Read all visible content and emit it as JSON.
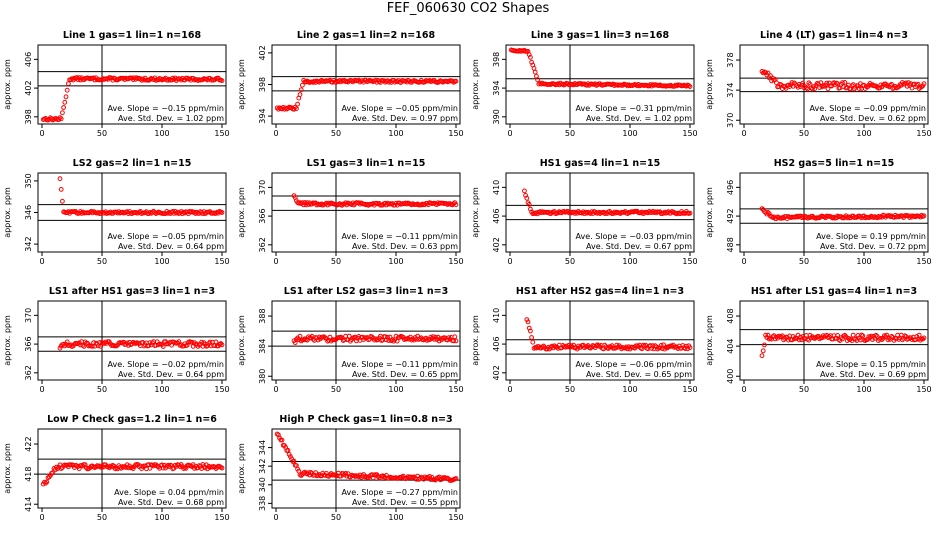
{
  "title": "FEF_060630  CO2 Shapes",
  "y_axis_label": "approx. ppm",
  "slope_prefix": "Ave. Slope = ",
  "slope_unit": " ppm/min",
  "sd_prefix": "Ave. Std. Dev. = ",
  "sd_unit": " ppm",
  "colors": {
    "points": "#ff0000",
    "lines": "#000000"
  },
  "chart_data": [
    {
      "type": "scatter",
      "title": "Line 1 gas=1 lin=1 n=168",
      "ylabel": "approx. ppm",
      "xlim": [
        0,
        150
      ],
      "xticks": [
        "0",
        "50",
        "100",
        "150"
      ],
      "ylim": [
        397,
        408
      ],
      "yticks": [
        398,
        402,
        406
      ],
      "ytick_labels": [
        "398",
        "402",
        "406"
      ],
      "hlines": [
        402.3,
        404.3
      ],
      "vline": 50,
      "slope": "−0.15",
      "sd": "1.02",
      "shape": {
        "start": 1,
        "end": 150,
        "pre": 397.7,
        "plateau": 403.3,
        "rise_start": 16,
        "rise_end": 23,
        "noise": 0.18,
        "drift": -0.1
      }
    },
    {
      "type": "scatter",
      "title": "Line 2 gas=1 lin=2 n=168",
      "ylabel": "approx. ppm",
      "xlim": [
        0,
        150
      ],
      "xticks": [
        "0",
        "50",
        "100",
        "150"
      ],
      "ylim": [
        393,
        403
      ],
      "yticks": [
        394,
        398,
        402
      ],
      "ytick_labels": [
        "394",
        "398",
        "402"
      ],
      "hlines": [
        397.2,
        399.0
      ],
      "vline": 50,
      "slope": "−0.05",
      "sd": "0.97",
      "shape": {
        "start": 1,
        "end": 150,
        "pre": 395.0,
        "plateau": 398.4,
        "rise_start": 17,
        "rise_end": 23,
        "noise": 0.15,
        "drift": 0
      }
    },
    {
      "type": "scatter",
      "title": "Line 3 gas=1 lin=3 n=168",
      "ylabel": "approx. ppm",
      "xlim": [
        0,
        150
      ],
      "xticks": [
        "0",
        "50",
        "100",
        "150"
      ],
      "ylim": [
        389,
        400
      ],
      "yticks": [
        390,
        394,
        398
      ],
      "ytick_labels": [
        "390",
        "394",
        "398"
      ],
      "hlines": [
        393.6,
        395.3
      ],
      "vline": 50,
      "slope": "−0.31",
      "sd": "1.02",
      "shape": {
        "start": 1,
        "end": 150,
        "pre": 399.2,
        "plateau": 394.6,
        "rise_start": 15,
        "rise_end": 24,
        "noise": 0.12,
        "drift": -0.3
      }
    },
    {
      "type": "scatter",
      "title": "Line 4 (LT) gas=1 lin=4 n=3",
      "ylabel": "approx. ppm",
      "xlim": [
        0,
        150
      ],
      "xticks": [
        "0",
        "50",
        "100",
        "150"
      ],
      "ylim": [
        369.5,
        380
      ],
      "yticks": [
        370,
        374,
        378
      ],
      "ytick_labels": [
        "370",
        "374",
        "378"
      ],
      "hlines": [
        373.8,
        375.6
      ],
      "vline": 50,
      "slope": "−0.09",
      "sd": "0.62",
      "shape": {
        "start": 15,
        "end": 150,
        "pre": 376.6,
        "plateau": 374.6,
        "rise_start": 15,
        "rise_end": 30,
        "noise": 0.45,
        "drift": 0
      }
    },
    {
      "type": "scatter",
      "title": "LS2 gas=2 lin=1 n=15",
      "ylabel": "approx. ppm",
      "xlim": [
        0,
        150
      ],
      "xticks": [
        "0",
        "50",
        "100",
        "150"
      ],
      "ylim": [
        341,
        351
      ],
      "yticks": [
        342,
        346,
        350
      ],
      "ytick_labels": [
        "342",
        "346",
        "350"
      ],
      "hlines": [
        345.0,
        347.0
      ],
      "vline": 50,
      "slope": "−0.05",
      "sd": "0.64",
      "shape": {
        "start": 15,
        "end": 150,
        "pre": 350.2,
        "plateau": 346.0,
        "rise_start": 15,
        "rise_end": 18,
        "noise": 0.15,
        "drift": 0
      }
    },
    {
      "type": "scatter",
      "title": "LS1 gas=3 lin=1 n=15",
      "ylabel": "approx. ppm",
      "xlim": [
        0,
        150
      ],
      "xticks": [
        "0",
        "50",
        "100",
        "150"
      ],
      "ylim": [
        361,
        372
      ],
      "yticks": [
        362,
        366,
        370
      ],
      "ytick_labels": [
        "362",
        "366",
        "370"
      ],
      "hlines": [
        366.8,
        368.8
      ],
      "vline": 50,
      "slope": "−0.11",
      "sd": "0.63",
      "shape": {
        "start": 15,
        "end": 150,
        "pre": 369.0,
        "plateau": 367.7,
        "rise_start": 15,
        "rise_end": 18,
        "noise": 0.2,
        "drift": 0
      }
    },
    {
      "type": "scatter",
      "title": "HS1 gas=4 lin=1 n=15",
      "ylabel": "approx. ppm",
      "xlim": [
        0,
        150
      ],
      "xticks": [
        "0",
        "50",
        "100",
        "150"
      ],
      "ylim": [
        401,
        412
      ],
      "yticks": [
        402,
        406,
        410
      ],
      "ytick_labels": [
        "402",
        "406",
        "410"
      ],
      "hlines": [
        405.5,
        407.5
      ],
      "vline": 50,
      "slope": "−0.03",
      "sd": "0.67",
      "shape": {
        "start": 12,
        "end": 150,
        "pre": 409.5,
        "plateau": 406.5,
        "rise_start": 12,
        "rise_end": 18,
        "noise": 0.18,
        "drift": 0
      }
    },
    {
      "type": "scatter",
      "title": "HS2 gas=5 lin=1 n=15",
      "ylabel": "approx. ppm",
      "xlim": [
        0,
        150
      ],
      "xticks": [
        "0",
        "50",
        "100",
        "150"
      ],
      "ylim": [
        487,
        498
      ],
      "yticks": [
        488,
        492,
        496
      ],
      "ytick_labels": [
        "488",
        "492",
        "496"
      ],
      "hlines": [
        491.0,
        493.0
      ],
      "vline": 50,
      "slope": "0.19",
      "sd": "0.72",
      "shape": {
        "start": 15,
        "end": 150,
        "pre": 492.9,
        "plateau": 491.8,
        "rise_start": 15,
        "rise_end": 25,
        "noise": 0.18,
        "drift": 0.2
      }
    },
    {
      "type": "scatter",
      "title": "LS1 after HS1 gas=3 lin=1 n=3",
      "ylabel": "approx. ppm",
      "xlim": [
        0,
        150
      ],
      "xticks": [
        "0",
        "50",
        "100",
        "150"
      ],
      "ylim": [
        361,
        372
      ],
      "yticks": [
        362,
        366,
        370
      ],
      "ytick_labels": [
        "362",
        "366",
        "370"
      ],
      "hlines": [
        365.0,
        367.0
      ],
      "vline": 50,
      "slope": "−0.02",
      "sd": "0.64",
      "shape": {
        "start": 15,
        "end": 150,
        "pre": 365.6,
        "plateau": 366.0,
        "rise_start": 15,
        "rise_end": 17,
        "noise": 0.35,
        "drift": 0
      }
    },
    {
      "type": "scatter",
      "title": "LS1 after LS2 gas=3 lin=1 n=3",
      "ylabel": "approx. ppm",
      "xlim": [
        0,
        150
      ],
      "xticks": [
        "0",
        "50",
        "100",
        "150"
      ],
      "ylim": [
        379.5,
        390
      ],
      "yticks": [
        380,
        384,
        388
      ],
      "ytick_labels": [
        "380",
        "384",
        "388"
      ],
      "hlines": [
        384.0,
        386.0
      ],
      "vline": 50,
      "slope": "−0.11",
      "sd": "0.65",
      "shape": {
        "start": 15,
        "end": 150,
        "pre": 384.6,
        "plateau": 385.0,
        "rise_start": 15,
        "rise_end": 17,
        "noise": 0.35,
        "drift": 0
      }
    },
    {
      "type": "scatter",
      "title": "HS1 after HS2 gas=4 lin=1 n=3",
      "ylabel": "approx. ppm",
      "xlim": [
        0,
        150
      ],
      "xticks": [
        "0",
        "50",
        "100",
        "150"
      ],
      "ylim": [
        401,
        412
      ],
      "yticks": [
        402,
        406,
        410
      ],
      "ytick_labels": [
        "402",
        "406",
        "410"
      ],
      "hlines": [
        404.6,
        406.6
      ],
      "vline": 50,
      "slope": "−0.06",
      "sd": "0.65",
      "shape": {
        "start": 14,
        "end": 150,
        "pre": 409.7,
        "plateau": 405.6,
        "rise_start": 14,
        "rise_end": 20,
        "noise": 0.3,
        "drift": 0
      }
    },
    {
      "type": "scatter",
      "title": "HS1 after LS1 gas=4 lin=1 n=3",
      "ylabel": "approx. ppm",
      "xlim": [
        0,
        150
      ],
      "xticks": [
        "0",
        "50",
        "100",
        "150"
      ],
      "ylim": [
        399.5,
        410
      ],
      "yticks": [
        400,
        404,
        408
      ],
      "ytick_labels": [
        "400",
        "404",
        "408"
      ],
      "hlines": [
        404.2,
        406.2
      ],
      "vline": 50,
      "slope": "0.15",
      "sd": "0.69",
      "shape": {
        "start": 15,
        "end": 150,
        "pre": 402.8,
        "plateau": 405.1,
        "rise_start": 15,
        "rise_end": 18,
        "noise": 0.38,
        "drift": 0
      }
    },
    {
      "type": "scatter",
      "title": "Low P Check gas=1.2 lin=1 n=6",
      "ylabel": "approx. ppm",
      "xlim": [
        0,
        150
      ],
      "xticks": [
        "0",
        "50",
        "100",
        "150"
      ],
      "ylim": [
        413.5,
        424
      ],
      "yticks": [
        414,
        418,
        422
      ],
      "ytick_labels": [
        "414",
        "418",
        "422"
      ],
      "hlines": [
        418.0,
        420.0
      ],
      "vline": 50,
      "slope": "0.04",
      "sd": "0.68",
      "shape": {
        "start": 1,
        "end": 150,
        "pre": 416.5,
        "plateau": 419.0,
        "rise_start": 1,
        "rise_end": 12,
        "noise": 0.3,
        "drift": 0
      }
    },
    {
      "type": "scatter",
      "title": "High P Check gas=1 lin=0.8 n=3",
      "ylabel": "approx. ppm",
      "xlim": [
        0,
        150
      ],
      "xticks": [
        "0",
        "50",
        "100",
        "150"
      ],
      "ylim": [
        337.5,
        346
      ],
      "yticks": [
        338,
        340,
        342,
        344
      ],
      "ytick_labels": [
        "338",
        "340",
        "342",
        "344"
      ],
      "hlines": [
        340.5,
        342.5
      ],
      "vline": 50,
      "slope": "−0.27",
      "sd": "0.55",
      "shape": {
        "start": 1,
        "end": 150,
        "pre": 345.6,
        "plateau": 341.2,
        "rise_start": 1,
        "rise_end": 20,
        "noise": 0.2,
        "drift": -0.6
      }
    }
  ]
}
